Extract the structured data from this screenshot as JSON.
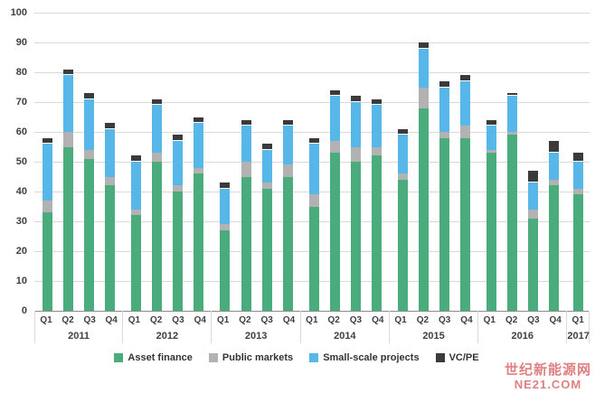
{
  "watermark": {
    "line1": "世纪新能源网",
    "line2": "NE21.COM"
  },
  "chart_data": {
    "type": "bar",
    "stacked": true,
    "title": "",
    "xlabel": "",
    "ylabel": "",
    "ylim": [
      0,
      100
    ],
    "ytick_step": 10,
    "yticks": [
      "100",
      "90",
      "80",
      "70",
      "60",
      "50",
      "40",
      "30",
      "20",
      "10",
      "0"
    ],
    "grid": true,
    "legend_position": "bottom",
    "groups": [
      {
        "year": "2011",
        "quarters": [
          "Q1",
          "Q2",
          "Q3",
          "Q4"
        ]
      },
      {
        "year": "2012",
        "quarters": [
          "Q1",
          "Q2",
          "Q3",
          "Q4"
        ]
      },
      {
        "year": "2013",
        "quarters": [
          "Q1",
          "Q2",
          "Q3",
          "Q4"
        ]
      },
      {
        "year": "2014",
        "quarters": [
          "Q1",
          "Q2",
          "Q3",
          "Q4"
        ]
      },
      {
        "year": "2015",
        "quarters": [
          "Q1",
          "Q2",
          "Q3",
          "Q4"
        ]
      },
      {
        "year": "2016",
        "quarters": [
          "Q1",
          "Q2",
          "Q3",
          "Q4"
        ]
      },
      {
        "year": "2017",
        "quarters": [
          "Q1"
        ]
      }
    ],
    "series": [
      {
        "name": "Asset finance",
        "color": "#4aab7d",
        "values": [
          33,
          55,
          51,
          42,
          32,
          50,
          40,
          46,
          27,
          45,
          41,
          45,
          35,
          53,
          50,
          52,
          44,
          68,
          58,
          58,
          53,
          59,
          31,
          42,
          39
        ]
      },
      {
        "name": "Public markets",
        "color": "#b2b2b2",
        "values": [
          4,
          5,
          3,
          3,
          2,
          3,
          2,
          2,
          2,
          5,
          2,
          4,
          4,
          4,
          5,
          3,
          2,
          7,
          2,
          4,
          1,
          1,
          3,
          2,
          2
        ]
      },
      {
        "name": "Small-scale projects",
        "color": "#57b7e8",
        "values": [
          19,
          19,
          17,
          16,
          16,
          16,
          15,
          15,
          12,
          12,
          11,
          13,
          17,
          15,
          15,
          14,
          13,
          13,
          15,
          15,
          8,
          12,
          9,
          9,
          9
        ]
      },
      {
        "name": "VC/PE",
        "color": "#3b3b3b",
        "values": [
          2,
          2,
          2,
          2,
          2,
          2,
          2,
          2,
          2,
          2,
          2,
          2,
          2,
          2,
          2,
          2,
          2,
          2,
          2,
          2,
          2,
          1,
          4,
          4,
          3
        ]
      }
    ]
  }
}
